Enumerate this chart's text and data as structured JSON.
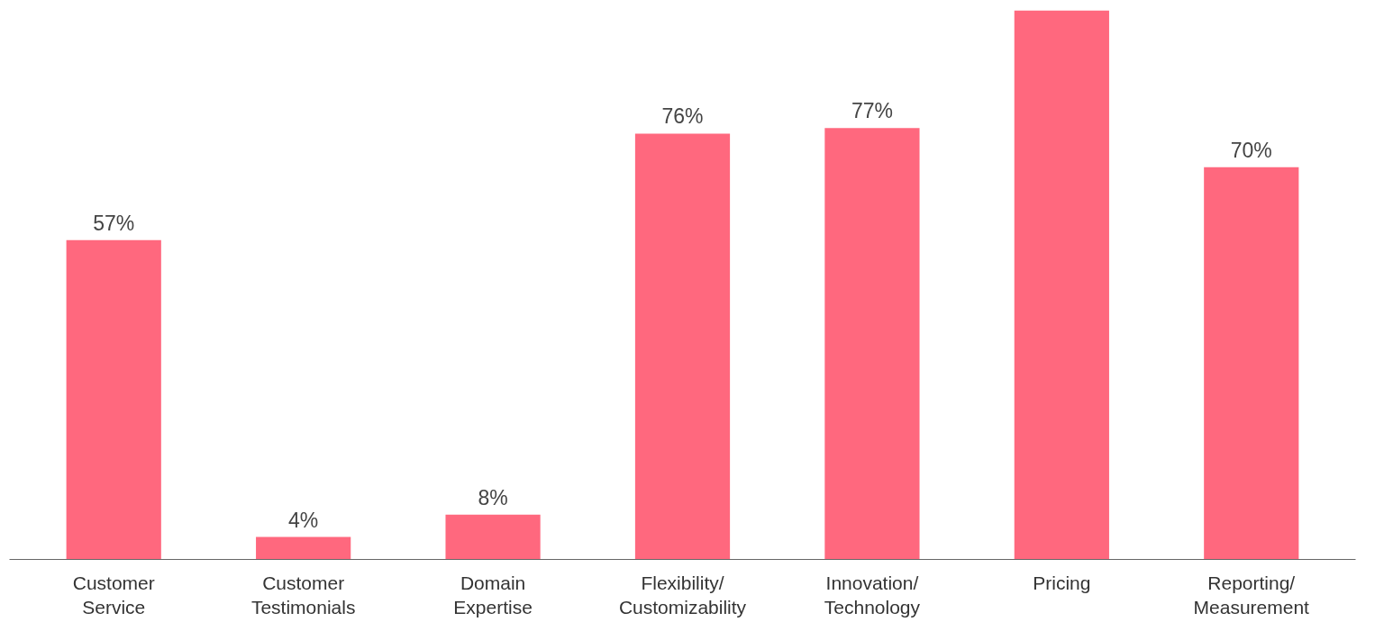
{
  "chart_data": {
    "type": "bar",
    "categories": [
      "Customer Service",
      "Customer Testimonials",
      "Domain Expertise",
      "Flexibility/ Customizability",
      "Innovation/ Technology",
      "Pricing",
      "Reporting/ Measurement"
    ],
    "values": [
      57,
      4,
      8,
      76,
      77,
      98,
      70
    ],
    "value_labels": [
      "57%",
      "4%",
      "8%",
      "76%",
      "77%",
      null,
      "70%"
    ],
    "color": "#ff687e"
  }
}
